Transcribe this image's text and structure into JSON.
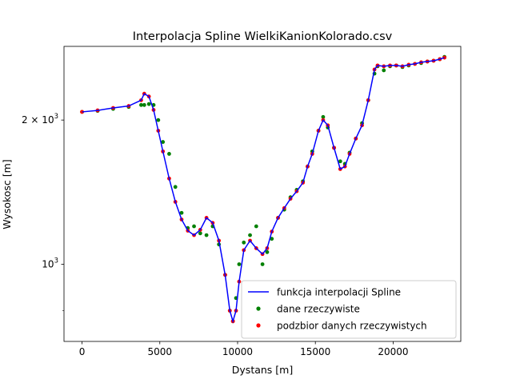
{
  "chart_data": {
    "type": "line",
    "title": "Interpolacja Spline WielkiKanionKolorado.csv",
    "xlabel": "Dystans [m]",
    "ylabel": "Wysokosc [m]",
    "xlim": [
      -1160,
      24350
    ],
    "ylim": [
      690,
      2850
    ],
    "yscale": "log",
    "grid": false,
    "legend_position": "lower right",
    "x_ticks": [
      0,
      5000,
      10000,
      15000,
      20000
    ],
    "y_ticks_major": [
      {
        "value": 1000,
        "label_base": "10",
        "label_exp": "3"
      },
      {
        "value": 2000,
        "label_base": "2 × 10",
        "label_exp": "3"
      }
    ],
    "y_ticks_minor": [
      800
    ],
    "series": [
      {
        "name": "funkcja interpolacji Spline",
        "kind": "line",
        "color": "#0000ff",
        "x": [
          0,
          1000,
          2000,
          3000,
          3800,
          4000,
          4300,
          4600,
          4900,
          5200,
          5600,
          6000,
          6400,
          6800,
          7200,
          7600,
          8000,
          8400,
          8800,
          9200,
          9500,
          9700,
          9900,
          10100,
          10400,
          10800,
          11200,
          11600,
          11900,
          12200,
          12600,
          13000,
          13400,
          13800,
          14200,
          14500,
          14800,
          15200,
          15500,
          15800,
          16200,
          16600,
          16900,
          17200,
          17600,
          18000,
          18400,
          18800,
          19000,
          19400,
          19800,
          20200,
          20600,
          21000,
          21400,
          21800,
          22200,
          22600,
          23000,
          23300
        ],
        "y": [
          2080,
          2095,
          2120,
          2140,
          2200,
          2270,
          2240,
          2100,
          1900,
          1720,
          1510,
          1350,
          1240,
          1175,
          1150,
          1180,
          1250,
          1220,
          1120,
          950,
          800,
          760,
          800,
          920,
          1070,
          1120,
          1080,
          1050,
          1080,
          1170,
          1250,
          1310,
          1370,
          1420,
          1480,
          1600,
          1700,
          1900,
          2000,
          1950,
          1750,
          1580,
          1600,
          1700,
          1830,
          1950,
          2200,
          2550,
          2600,
          2590,
          2600,
          2600,
          2590,
          2610,
          2620,
          2640,
          2650,
          2660,
          2680,
          2700
        ]
      },
      {
        "name": "dane rzeczywiste",
        "kind": "scatter",
        "color": "#008000",
        "x": [
          0,
          1000,
          2000,
          3000,
          3800,
          4000,
          4300,
          4600,
          4900,
          5200,
          5600,
          6000,
          6400,
          6800,
          7200,
          7600,
          8000,
          8400,
          8800,
          9200,
          9500,
          9700,
          9900,
          10100,
          10400,
          10800,
          11200,
          11600,
          11900,
          12200,
          12600,
          13000,
          13400,
          13800,
          14200,
          14500,
          14800,
          15200,
          15500,
          15800,
          16200,
          16600,
          16900,
          17200,
          17600,
          18000,
          18400,
          18800,
          19000,
          19400,
          19800,
          20200,
          20600,
          21000,
          21400,
          21800,
          22200,
          22600,
          23000,
          23300
        ],
        "y": [
          2080,
          2090,
          2110,
          2130,
          2150,
          2150,
          2160,
          2150,
          2000,
          1800,
          1700,
          1450,
          1280,
          1190,
          1200,
          1160,
          1150,
          1200,
          1100,
          950,
          800,
          760,
          850,
          1000,
          1110,
          1150,
          1200,
          1000,
          1060,
          1130,
          1250,
          1300,
          1380,
          1430,
          1490,
          1600,
          1720,
          1900,
          2030,
          1930,
          1750,
          1640,
          1620,
          1710,
          1830,
          1970,
          2200,
          2500,
          2590,
          2540,
          2590,
          2600,
          2580,
          2600,
          2620,
          2630,
          2650,
          2660,
          2680,
          2710
        ]
      },
      {
        "name": "podzbior danych rzeczywistych",
        "kind": "scatter",
        "color": "#ff0000",
        "x": [
          0,
          1000,
          2000,
          3000,
          3800,
          4000,
          4300,
          4600,
          4900,
          5200,
          5600,
          6000,
          6400,
          6800,
          7200,
          7600,
          8000,
          8400,
          8800,
          9200,
          9500,
          9700,
          9900,
          10100,
          10400,
          10800,
          11200,
          11600,
          11900,
          12200,
          12600,
          13000,
          13400,
          13800,
          14200,
          14500,
          14800,
          15200,
          15500,
          15800,
          16200,
          16600,
          16900,
          17200,
          17600,
          18000,
          18400,
          18800,
          19000,
          19400,
          19800,
          20200,
          20600,
          21000,
          21400,
          21800,
          22200,
          22600,
          23000,
          23300
        ],
        "y": [
          2080,
          2095,
          2120,
          2140,
          2200,
          2270,
          2240,
          2100,
          1900,
          1720,
          1510,
          1350,
          1240,
          1175,
          1150,
          1180,
          1250,
          1220,
          1120,
          950,
          800,
          760,
          800,
          920,
          1070,
          1120,
          1080,
          1050,
          1080,
          1170,
          1250,
          1310,
          1370,
          1420,
          1480,
          1600,
          1700,
          1900,
          2000,
          1950,
          1750,
          1580,
          1600,
          1700,
          1830,
          1950,
          2200,
          2550,
          2600,
          2590,
          2600,
          2600,
          2590,
          2610,
          2620,
          2640,
          2650,
          2660,
          2680,
          2700
        ]
      }
    ]
  }
}
